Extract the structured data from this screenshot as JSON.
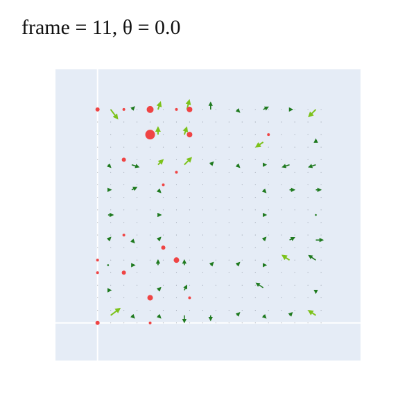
{
  "title": "frame = 11, θ = 0.0",
  "colors": {
    "background": "#ffffff",
    "plot_bg": "#e5ecf6",
    "grid": "#ffffff",
    "marker": "#ef4444",
    "arrow_small": "#1f7a1f",
    "arrow_large": "#7cc21a",
    "dot": "#6b7280"
  },
  "chart_data": {
    "type": "scatter",
    "title": "frame = 11, θ = 0.0",
    "xlabel": "",
    "ylabel": "",
    "xlim": [
      -1.6,
      10.0
    ],
    "ylim": [
      -10.0,
      1.6
    ],
    "grid": true,
    "show_tick_labels": false,
    "grid_size": 9,
    "markers": [
      {
        "x": 0,
        "y": 0,
        "size": 3
      },
      {
        "x": 1,
        "y": 0,
        "size": 2
      },
      {
        "x": 2,
        "y": 0,
        "size": 5
      },
      {
        "x": 3,
        "y": 0,
        "size": 2
      },
      {
        "x": 3.5,
        "y": 0,
        "size": 4
      },
      {
        "x": 2,
        "y": -1,
        "size": 7
      },
      {
        "x": 3.5,
        "y": -1,
        "size": 4
      },
      {
        "x": 6.5,
        "y": -1,
        "size": 2
      },
      {
        "x": 1,
        "y": -2,
        "size": 3
      },
      {
        "x": 3,
        "y": -2.5,
        "size": 2
      },
      {
        "x": 2.5,
        "y": -3,
        "size": 2
      },
      {
        "x": 1,
        "y": -5,
        "size": 2
      },
      {
        "x": 2.5,
        "y": -5.5,
        "size": 3
      },
      {
        "x": 0,
        "y": -6,
        "size": 2
      },
      {
        "x": 3,
        "y": -6,
        "size": 4
      },
      {
        "x": 1,
        "y": -6.5,
        "size": 3
      },
      {
        "x": 0,
        "y": -6.5,
        "size": 2
      },
      {
        "x": 2,
        "y": -7.5,
        "size": 4
      },
      {
        "x": 3.5,
        "y": -7.5,
        "size": 2
      },
      {
        "x": 0,
        "y": -8.5,
        "size": 3
      },
      {
        "x": 2,
        "y": -8.5,
        "size": 2
      }
    ],
    "arrows": [
      {
        "x": 0.5,
        "y": 0,
        "u": 0.3,
        "v": -0.4,
        "big": true
      },
      {
        "x": 1.3,
        "y": 0,
        "u": 0.1,
        "v": 0.1,
        "big": false
      },
      {
        "x": 2.3,
        "y": 0,
        "u": 0.1,
        "v": 0.3,
        "big": true
      },
      {
        "x": 3.4,
        "y": 0,
        "u": 0.1,
        "v": 0.4,
        "big": true
      },
      {
        "x": 4.3,
        "y": 0,
        "u": 0,
        "v": 0.3,
        "big": false
      },
      {
        "x": 5.3,
        "y": 0,
        "u": 0.1,
        "v": -0.1,
        "big": false
      },
      {
        "x": 6.3,
        "y": 0,
        "u": 0.2,
        "v": 0.1,
        "big": false
      },
      {
        "x": 7.3,
        "y": 0,
        "u": 0.1,
        "v": 0,
        "big": false
      },
      {
        "x": 8.3,
        "y": 0,
        "u": -0.3,
        "v": -0.3,
        "big": true
      },
      {
        "x": 2.3,
        "y": -1,
        "u": 0,
        "v": 0.3,
        "big": true
      },
      {
        "x": 3.3,
        "y": -1,
        "u": 0.1,
        "v": 0.3,
        "big": true
      },
      {
        "x": 6.3,
        "y": -1.3,
        "u": -0.3,
        "v": -0.2,
        "big": true
      },
      {
        "x": 8.3,
        "y": -1.3,
        "u": 0,
        "v": 0.1,
        "big": false
      },
      {
        "x": 0.4,
        "y": -2.2,
        "u": 0.1,
        "v": -0.1,
        "big": false
      },
      {
        "x": 1.3,
        "y": -2.2,
        "u": 0.3,
        "v": -0.1,
        "big": false
      },
      {
        "x": 2.3,
        "y": -2.2,
        "u": 0.2,
        "v": 0.2,
        "big": true
      },
      {
        "x": 3.3,
        "y": -2.2,
        "u": 0.3,
        "v": 0.3,
        "big": true
      },
      {
        "x": 4.3,
        "y": -2.2,
        "u": 0.1,
        "v": 0.1,
        "big": false
      },
      {
        "x": 5.3,
        "y": -2.2,
        "u": 0.1,
        "v": -0.1,
        "big": false
      },
      {
        "x": 6.3,
        "y": -2.2,
        "u": 0.1,
        "v": 0,
        "big": false
      },
      {
        "x": 7.3,
        "y": -2.2,
        "u": -0.3,
        "v": -0.1,
        "big": false
      },
      {
        "x": 8.3,
        "y": -2.2,
        "u": -0.3,
        "v": -0.1,
        "big": false
      },
      {
        "x": 0.4,
        "y": -3.2,
        "u": 0.1,
        "v": 0,
        "big": false
      },
      {
        "x": 1.3,
        "y": -3.2,
        "u": 0.2,
        "v": 0.1,
        "big": false
      },
      {
        "x": 2.3,
        "y": -3.2,
        "u": 0.1,
        "v": -0.1,
        "big": false
      },
      {
        "x": 6.3,
        "y": -3.2,
        "u": 0.1,
        "v": -0.1,
        "big": false
      },
      {
        "x": 7.3,
        "y": -3.2,
        "u": 0.2,
        "v": 0,
        "big": false
      },
      {
        "x": 8.3,
        "y": -3.2,
        "u": 0.2,
        "v": 0,
        "big": false
      },
      {
        "x": 0.4,
        "y": -4.2,
        "u": 0.2,
        "v": 0,
        "big": false
      },
      {
        "x": 2.3,
        "y": -4.2,
        "u": 0.1,
        "v": 0,
        "big": false
      },
      {
        "x": 6.3,
        "y": -4.2,
        "u": 0.1,
        "v": 0,
        "big": false
      },
      {
        "x": 8.3,
        "y": -4.2,
        "u": 0,
        "v": 0,
        "big": false
      },
      {
        "x": 0.4,
        "y": -5.2,
        "u": 0.1,
        "v": 0.1,
        "big": false
      },
      {
        "x": 1.3,
        "y": -5.2,
        "u": 0.1,
        "v": -0.1,
        "big": false
      },
      {
        "x": 2.3,
        "y": -5.2,
        "u": 0.1,
        "v": 0.1,
        "big": false
      },
      {
        "x": 6.3,
        "y": -5.2,
        "u": 0.1,
        "v": 0.1,
        "big": false
      },
      {
        "x": 7.3,
        "y": -5.2,
        "u": 0.2,
        "v": 0.1,
        "big": false
      },
      {
        "x": 8.3,
        "y": -5.2,
        "u": 0.3,
        "v": 0,
        "big": false
      },
      {
        "x": 0.4,
        "y": -6.2,
        "u": 0,
        "v": 0,
        "big": false
      },
      {
        "x": 1.3,
        "y": -6.2,
        "u": 0.1,
        "v": 0,
        "big": false
      },
      {
        "x": 2.3,
        "y": -6.2,
        "u": 0,
        "v": 0.2,
        "big": false
      },
      {
        "x": 3.3,
        "y": -6.2,
        "u": 0,
        "v": 0.2,
        "big": false
      },
      {
        "x": 4.3,
        "y": -6.2,
        "u": 0.1,
        "v": 0.1,
        "big": false
      },
      {
        "x": 5.3,
        "y": -6.2,
        "u": 0.1,
        "v": 0.1,
        "big": false
      },
      {
        "x": 6.3,
        "y": -6.2,
        "u": 0.1,
        "v": 0,
        "big": false
      },
      {
        "x": 7.3,
        "y": -6,
        "u": -0.3,
        "v": 0.2,
        "big": true
      },
      {
        "x": 8.3,
        "y": -6,
        "u": -0.3,
        "v": 0.2,
        "big": false
      },
      {
        "x": 0.4,
        "y": -7.2,
        "u": 0.1,
        "v": 0,
        "big": false
      },
      {
        "x": 2.3,
        "y": -7.2,
        "u": 0.1,
        "v": 0.1,
        "big": false
      },
      {
        "x": 3.3,
        "y": -7.2,
        "u": 0.1,
        "v": 0.2,
        "big": false
      },
      {
        "x": 6.3,
        "y": -7.1,
        "u": -0.3,
        "v": 0.2,
        "big": false
      },
      {
        "x": 8.3,
        "y": -7.2,
        "u": 0,
        "v": -0.1,
        "big": false
      },
      {
        "x": 0.5,
        "y": -8.2,
        "u": 0.4,
        "v": 0.3,
        "big": true
      },
      {
        "x": 1.3,
        "y": -8.2,
        "u": 0.1,
        "v": -0.1,
        "big": false
      },
      {
        "x": 2.3,
        "y": -8.2,
        "u": 0.1,
        "v": -0.1,
        "big": false
      },
      {
        "x": 3.3,
        "y": -8.2,
        "u": 0,
        "v": -0.3,
        "big": false
      },
      {
        "x": 4.3,
        "y": -8.2,
        "u": 0,
        "v": -0.2,
        "big": false
      },
      {
        "x": 5.3,
        "y": -8.2,
        "u": 0.1,
        "v": 0.1,
        "big": false
      },
      {
        "x": 6.3,
        "y": -8.2,
        "u": 0.1,
        "v": -0.1,
        "big": false
      },
      {
        "x": 7.3,
        "y": -8.2,
        "u": 0.1,
        "v": 0.1,
        "big": false
      },
      {
        "x": 8.3,
        "y": -8.2,
        "u": -0.3,
        "v": 0.2,
        "big": true
      }
    ]
  }
}
